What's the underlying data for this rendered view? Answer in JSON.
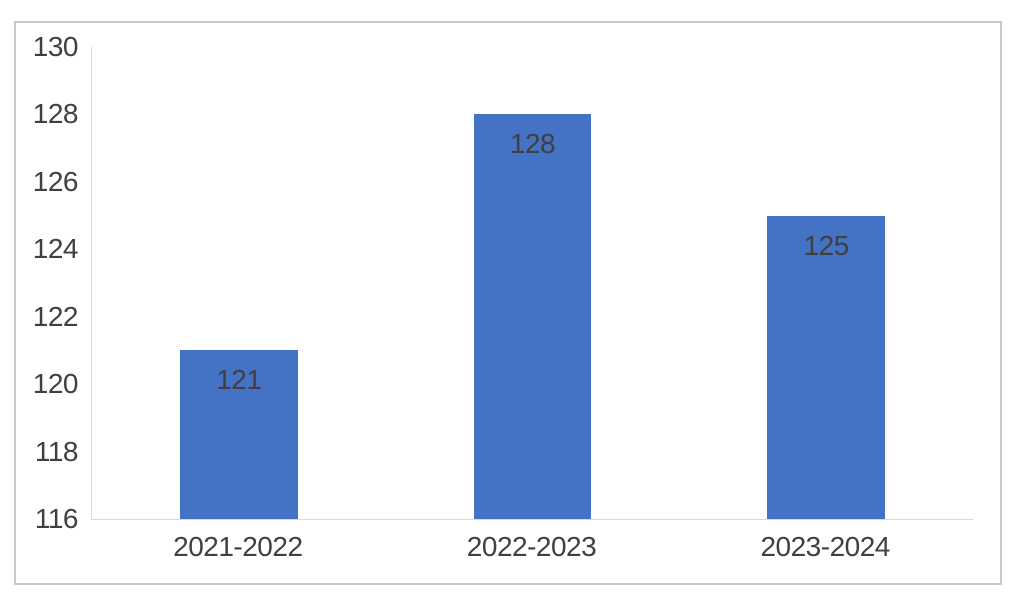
{
  "chart_data": {
    "type": "bar",
    "title": "",
    "xlabel": "",
    "ylabel": "",
    "categories": [
      "2021-2022",
      "2022-2023",
      "2023-2024"
    ],
    "values": [
      121,
      128,
      125
    ],
    "data_label_position": "inside-end",
    "ylim": [
      116,
      130
    ],
    "yticks": [
      116,
      118,
      120,
      122,
      124,
      126,
      128,
      130
    ],
    "grid": false,
    "legend": false,
    "colors": {
      "bar": "#4472C4",
      "text": "#404040",
      "axis_line": "#D9D9D9",
      "frame_border": "#C8C8C8",
      "background": "#FFFFFF"
    }
  }
}
